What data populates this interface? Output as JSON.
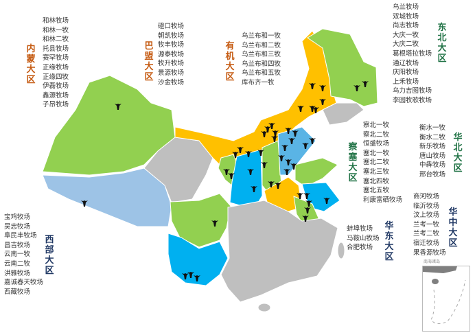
{
  "colors": {
    "province_yellow": "#ffc000",
    "province_green": "#92d050",
    "province_blue": "#00b0f0",
    "province_lightblue": "#9dc3e6",
    "province_gray": "#bfbfbf",
    "label_brown": "#c55a11",
    "label_green": "#217346",
    "label_navy": "#203864"
  },
  "marker_icon": "cow-icon",
  "regions": [
    {
      "id": "neimeng",
      "label": "内蒙大区",
      "color": "#c55a11",
      "ranches": [
        "和林牧场",
        "和林一牧",
        "和林二牧",
        "托县牧场",
        "赛罕牧场",
        "正缘牧场",
        "正缘四牧",
        "伊磊牧场",
        "鑫源牧场",
        "子昂牧场"
      ]
    },
    {
      "id": "bameng",
      "label": "巴盟大区",
      "color": "#c55a11",
      "ranches": [
        "磴口牧场",
        "朝凯牧场",
        "牧丰牧场",
        "源泰牧场",
        "牧升牧场",
        "景源牧场",
        "沙金牧场"
      ]
    },
    {
      "id": "youji",
      "label": "有机大区",
      "color": "#c55a11",
      "ranches": [
        "乌兰布和一牧",
        "乌兰布和二牧",
        "乌兰布和三牧",
        "乌兰布和四牧",
        "乌兰布和五牧",
        "库布齐一牧"
      ]
    },
    {
      "id": "dongbei",
      "label": "东北大区",
      "color": "#217346",
      "ranches": [
        "乌兰牧场",
        "双城牧场",
        "尚志牧场",
        "大庆一牧",
        "大庆二牧",
        "葛根塔拉牧场",
        "通辽牧场",
        "庆阳牧场",
        "上禾牧场",
        "乌力吉图牧场",
        "李园牧歌牧场"
      ]
    },
    {
      "id": "chasai",
      "label": "察塞大区",
      "color": "#217346",
      "ranches": [
        "察北一牧",
        "察北二牧",
        "恒盛牧场",
        "塞北一牧",
        "塞北二牧",
        "塞北三牧",
        "塞北四牧",
        "塞北五牧",
        "利康富硒牧场"
      ]
    },
    {
      "id": "huabei",
      "label": "华北大区",
      "color": "#217346",
      "ranches": [
        "衡水一牧",
        "衡水二牧",
        "新乐牧场",
        "唐山牧场",
        "中犇牧场",
        "邢台牧场"
      ]
    },
    {
      "id": "huazhong",
      "label": "华中大区",
      "color": "#203864",
      "ranches": [
        "商河牧场",
        "临沂牧场",
        "汶上牧场",
        "兰考一牧",
        "兰考二牧",
        "宿迁牧场",
        "果香源牧场"
      ]
    },
    {
      "id": "huadong",
      "label": "华东大区",
      "color": "#203864",
      "ranches": [
        "蚌埠牧场",
        "马鞍山牧场",
        "合肥牧场"
      ]
    },
    {
      "id": "xibu",
      "label": "西部大区",
      "color": "#203864",
      "ranches": [
        "宝鸡牧场",
        "吴忠牧场",
        "阜民丰牧场",
        "昌吉牧场",
        "云南一牧",
        "云南二牧",
        "洪雅牧场",
        "嘉诚春天牧场",
        "西藏牧场"
      ]
    }
  ],
  "inset": {
    "title": "南海诸岛"
  }
}
